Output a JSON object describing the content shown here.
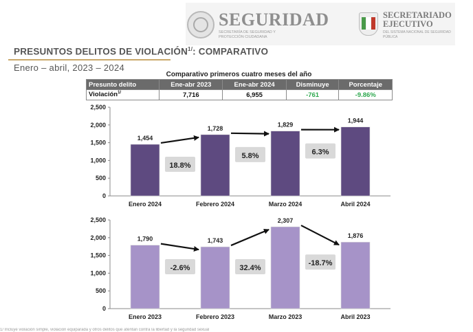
{
  "header": {
    "logo_title": "SEGURIDAD",
    "logo_subtitle": "Secretaría de Seguridad y Protección Ciudadana",
    "secretariado_title": "SECRETARIADO EJECUTIVO",
    "secretariado_subtitle": "Del Sistema Nacional de Seguridad Pública"
  },
  "page": {
    "title_main": "PRESUNTOS DELITOS DE VIOLACIÓN",
    "title_sup": "1/",
    "title_tail": ": COMPARATIVO",
    "subtitle": "Enero – abril, 2023 – 2024",
    "footer": "1/ Incluye violación simple, violación equiparada y otros delitos que atentan contra la libertad y la seguridad sexual"
  },
  "table": {
    "caption": "Comparativo primeros cuatro meses del año",
    "headers": [
      "Presunto delito",
      "Ene-abr 2023",
      "Ene-abr 2024",
      "Disminuye",
      "Porcentaje"
    ],
    "row": {
      "label": "Violación",
      "label_sup": "1/",
      "ene_abr_2023": "7,716",
      "ene_abr_2024": "6,955",
      "disminuye": "-761",
      "porcentaje": "-9.86%"
    },
    "negative_color": "#2fa84f"
  },
  "chart_data": [
    {
      "type": "bar",
      "categories": [
        "Enero 2024",
        "Febrero 2024",
        "Marzo 2024",
        "Abril 2024"
      ],
      "values": [
        1454,
        1728,
        1829,
        1944
      ],
      "value_labels": [
        "1,454",
        "1,728",
        "1,829",
        "1,944"
      ],
      "changes": [
        "18.8%",
        "5.8%",
        "6.3%"
      ],
      "ylim": [
        0,
        2500
      ],
      "yticks": [
        "0",
        "500",
        "1,000",
        "1,500",
        "2,000",
        "2,500"
      ],
      "bar_color": "#5e4a80",
      "grid": false
    },
    {
      "type": "bar",
      "categories": [
        "Enero 2023",
        "Febrero 2023",
        "Marzo 2023",
        "Abril 2023"
      ],
      "values": [
        1790,
        1743,
        2307,
        1876
      ],
      "value_labels": [
        "1,790",
        "1,743",
        "2,307",
        "1,876"
      ],
      "changes": [
        "-2.6%",
        "32.4%",
        "-18.7%"
      ],
      "ylim": [
        0,
        2500
      ],
      "yticks": [
        "0",
        "500",
        "1,000",
        "1,500",
        "2,000",
        "2,500"
      ],
      "bar_color": "#a693c8",
      "grid": false
    }
  ]
}
